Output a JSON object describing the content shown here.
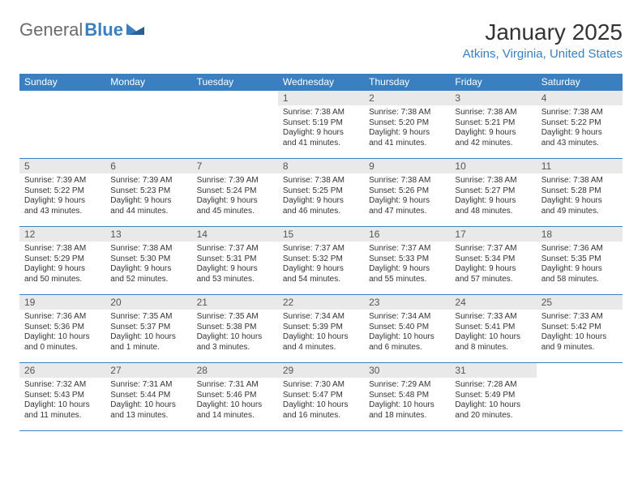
{
  "logo": {
    "general": "General",
    "blue": "Blue"
  },
  "title": "January 2025",
  "subtitle": "Atkins, Virginia, United States",
  "colors": {
    "header_bg": "#3a7fbf",
    "header_text": "#ffffff",
    "daynum_bg": "#e9e9e9",
    "border": "#3a7fbf",
    "logo_gray": "#6b6b6b",
    "logo_blue": "#3a7fbf"
  },
  "weekday_headers": [
    "Sunday",
    "Monday",
    "Tuesday",
    "Wednesday",
    "Thursday",
    "Friday",
    "Saturday"
  ],
  "weeks": [
    [
      {
        "n": "",
        "sr": "",
        "ss": "",
        "dl": ""
      },
      {
        "n": "",
        "sr": "",
        "ss": "",
        "dl": ""
      },
      {
        "n": "",
        "sr": "",
        "ss": "",
        "dl": ""
      },
      {
        "n": "1",
        "sr": "Sunrise: 7:38 AM",
        "ss": "Sunset: 5:19 PM",
        "dl": "Daylight: 9 hours and 41 minutes."
      },
      {
        "n": "2",
        "sr": "Sunrise: 7:38 AM",
        "ss": "Sunset: 5:20 PM",
        "dl": "Daylight: 9 hours and 41 minutes."
      },
      {
        "n": "3",
        "sr": "Sunrise: 7:38 AM",
        "ss": "Sunset: 5:21 PM",
        "dl": "Daylight: 9 hours and 42 minutes."
      },
      {
        "n": "4",
        "sr": "Sunrise: 7:38 AM",
        "ss": "Sunset: 5:22 PM",
        "dl": "Daylight: 9 hours and 43 minutes."
      }
    ],
    [
      {
        "n": "5",
        "sr": "Sunrise: 7:39 AM",
        "ss": "Sunset: 5:22 PM",
        "dl": "Daylight: 9 hours and 43 minutes."
      },
      {
        "n": "6",
        "sr": "Sunrise: 7:39 AM",
        "ss": "Sunset: 5:23 PM",
        "dl": "Daylight: 9 hours and 44 minutes."
      },
      {
        "n": "7",
        "sr": "Sunrise: 7:39 AM",
        "ss": "Sunset: 5:24 PM",
        "dl": "Daylight: 9 hours and 45 minutes."
      },
      {
        "n": "8",
        "sr": "Sunrise: 7:38 AM",
        "ss": "Sunset: 5:25 PM",
        "dl": "Daylight: 9 hours and 46 minutes."
      },
      {
        "n": "9",
        "sr": "Sunrise: 7:38 AM",
        "ss": "Sunset: 5:26 PM",
        "dl": "Daylight: 9 hours and 47 minutes."
      },
      {
        "n": "10",
        "sr": "Sunrise: 7:38 AM",
        "ss": "Sunset: 5:27 PM",
        "dl": "Daylight: 9 hours and 48 minutes."
      },
      {
        "n": "11",
        "sr": "Sunrise: 7:38 AM",
        "ss": "Sunset: 5:28 PM",
        "dl": "Daylight: 9 hours and 49 minutes."
      }
    ],
    [
      {
        "n": "12",
        "sr": "Sunrise: 7:38 AM",
        "ss": "Sunset: 5:29 PM",
        "dl": "Daylight: 9 hours and 50 minutes."
      },
      {
        "n": "13",
        "sr": "Sunrise: 7:38 AM",
        "ss": "Sunset: 5:30 PM",
        "dl": "Daylight: 9 hours and 52 minutes."
      },
      {
        "n": "14",
        "sr": "Sunrise: 7:37 AM",
        "ss": "Sunset: 5:31 PM",
        "dl": "Daylight: 9 hours and 53 minutes."
      },
      {
        "n": "15",
        "sr": "Sunrise: 7:37 AM",
        "ss": "Sunset: 5:32 PM",
        "dl": "Daylight: 9 hours and 54 minutes."
      },
      {
        "n": "16",
        "sr": "Sunrise: 7:37 AM",
        "ss": "Sunset: 5:33 PM",
        "dl": "Daylight: 9 hours and 55 minutes."
      },
      {
        "n": "17",
        "sr": "Sunrise: 7:37 AM",
        "ss": "Sunset: 5:34 PM",
        "dl": "Daylight: 9 hours and 57 minutes."
      },
      {
        "n": "18",
        "sr": "Sunrise: 7:36 AM",
        "ss": "Sunset: 5:35 PM",
        "dl": "Daylight: 9 hours and 58 minutes."
      }
    ],
    [
      {
        "n": "19",
        "sr": "Sunrise: 7:36 AM",
        "ss": "Sunset: 5:36 PM",
        "dl": "Daylight: 10 hours and 0 minutes."
      },
      {
        "n": "20",
        "sr": "Sunrise: 7:35 AM",
        "ss": "Sunset: 5:37 PM",
        "dl": "Daylight: 10 hours and 1 minute."
      },
      {
        "n": "21",
        "sr": "Sunrise: 7:35 AM",
        "ss": "Sunset: 5:38 PM",
        "dl": "Daylight: 10 hours and 3 minutes."
      },
      {
        "n": "22",
        "sr": "Sunrise: 7:34 AM",
        "ss": "Sunset: 5:39 PM",
        "dl": "Daylight: 10 hours and 4 minutes."
      },
      {
        "n": "23",
        "sr": "Sunrise: 7:34 AM",
        "ss": "Sunset: 5:40 PM",
        "dl": "Daylight: 10 hours and 6 minutes."
      },
      {
        "n": "24",
        "sr": "Sunrise: 7:33 AM",
        "ss": "Sunset: 5:41 PM",
        "dl": "Daylight: 10 hours and 8 minutes."
      },
      {
        "n": "25",
        "sr": "Sunrise: 7:33 AM",
        "ss": "Sunset: 5:42 PM",
        "dl": "Daylight: 10 hours and 9 minutes."
      }
    ],
    [
      {
        "n": "26",
        "sr": "Sunrise: 7:32 AM",
        "ss": "Sunset: 5:43 PM",
        "dl": "Daylight: 10 hours and 11 minutes."
      },
      {
        "n": "27",
        "sr": "Sunrise: 7:31 AM",
        "ss": "Sunset: 5:44 PM",
        "dl": "Daylight: 10 hours and 13 minutes."
      },
      {
        "n": "28",
        "sr": "Sunrise: 7:31 AM",
        "ss": "Sunset: 5:46 PM",
        "dl": "Daylight: 10 hours and 14 minutes."
      },
      {
        "n": "29",
        "sr": "Sunrise: 7:30 AM",
        "ss": "Sunset: 5:47 PM",
        "dl": "Daylight: 10 hours and 16 minutes."
      },
      {
        "n": "30",
        "sr": "Sunrise: 7:29 AM",
        "ss": "Sunset: 5:48 PM",
        "dl": "Daylight: 10 hours and 18 minutes."
      },
      {
        "n": "31",
        "sr": "Sunrise: 7:28 AM",
        "ss": "Sunset: 5:49 PM",
        "dl": "Daylight: 10 hours and 20 minutes."
      },
      {
        "n": "",
        "sr": "",
        "ss": "",
        "dl": ""
      }
    ]
  ]
}
